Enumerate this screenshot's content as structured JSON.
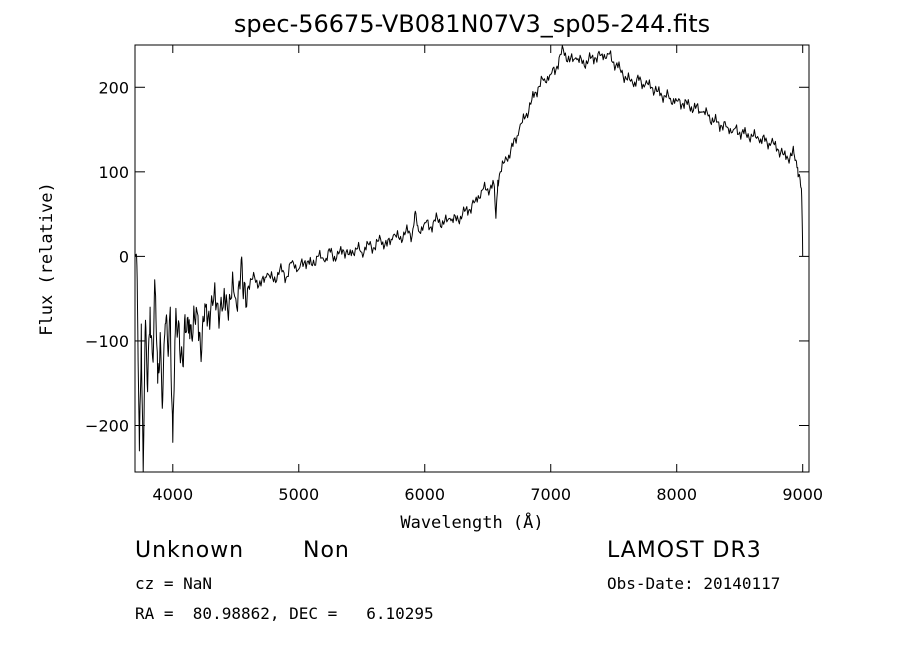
{
  "chart_data": {
    "type": "line",
    "title": "spec-56675-VB081N07V3_sp05-244.fits",
    "xlabel": "Wavelength (Å)",
    "ylabel": "Flux (relative)",
    "xlim": [
      3700,
      9050
    ],
    "ylim": [
      -255,
      250
    ],
    "x_ticks": [
      4000,
      5000,
      6000,
      7000,
      8000,
      9000
    ],
    "y_ticks": [
      -200,
      -100,
      0,
      100,
      200
    ],
    "grid": false,
    "series": [
      {
        "name": "flux",
        "points": [
          [
            3705,
            0
          ],
          [
            3720,
            -60
          ],
          [
            3735,
            -230
          ],
          [
            3750,
            -80
          ],
          [
            3765,
            -255
          ],
          [
            3780,
            -90
          ],
          [
            3800,
            -160
          ],
          [
            3820,
            -60
          ],
          [
            3840,
            -120
          ],
          [
            3860,
            -40
          ],
          [
            3880,
            -150
          ],
          [
            3900,
            -90
          ],
          [
            3920,
            -170
          ],
          [
            3940,
            -80
          ],
          [
            3960,
            -110
          ],
          [
            3980,
            -60
          ],
          [
            4000,
            -220
          ],
          [
            4020,
            -90
          ],
          [
            4050,
            -80
          ],
          [
            4080,
            -130
          ],
          [
            4100,
            -90
          ],
          [
            4130,
            -75
          ],
          [
            4160,
            -90
          ],
          [
            4200,
            -70
          ],
          [
            4230,
            -110
          ],
          [
            4260,
            -60
          ],
          [
            4300,
            -65
          ],
          [
            4350,
            -55
          ],
          [
            4400,
            -60
          ],
          [
            4450,
            -45
          ],
          [
            4500,
            -50
          ],
          [
            4540,
            -15
          ],
          [
            4560,
            -50
          ],
          [
            4600,
            -35
          ],
          [
            4650,
            -25
          ],
          [
            4700,
            -35
          ],
          [
            4750,
            -20
          ],
          [
            4800,
            -30
          ],
          [
            4850,
            -15
          ],
          [
            4900,
            -25
          ],
          [
            4950,
            -5
          ],
          [
            5000,
            -15
          ],
          [
            5050,
            -5
          ],
          [
            5100,
            -10
          ],
          [
            5150,
            0
          ],
          [
            5200,
            -5
          ],
          [
            5250,
            5
          ],
          [
            5300,
            -2
          ],
          [
            5350,
            8
          ],
          [
            5400,
            2
          ],
          [
            5450,
            10
          ],
          [
            5500,
            5
          ],
          [
            5550,
            15
          ],
          [
            5600,
            10
          ],
          [
            5650,
            20
          ],
          [
            5700,
            12
          ],
          [
            5750,
            25
          ],
          [
            5800,
            20
          ],
          [
            5850,
            30
          ],
          [
            5900,
            25
          ],
          [
            5920,
            50
          ],
          [
            5950,
            30
          ],
          [
            6000,
            40
          ],
          [
            6050,
            35
          ],
          [
            6100,
            45
          ],
          [
            6150,
            38
          ],
          [
            6200,
            45
          ],
          [
            6250,
            42
          ],
          [
            6300,
            50
          ],
          [
            6350,
            55
          ],
          [
            6400,
            65
          ],
          [
            6450,
            78
          ],
          [
            6500,
            80
          ],
          [
            6550,
            85
          ],
          [
            6565,
            45
          ],
          [
            6580,
            90
          ],
          [
            6600,
            100
          ],
          [
            6650,
            115
          ],
          [
            6700,
            130
          ],
          [
            6750,
            150
          ],
          [
            6800,
            165
          ],
          [
            6850,
            185
          ],
          [
            6900,
            200
          ],
          [
            6950,
            210
          ],
          [
            7000,
            215
          ],
          [
            7050,
            225
          ],
          [
            7100,
            245
          ],
          [
            7150,
            230
          ],
          [
            7200,
            235
          ],
          [
            7250,
            228
          ],
          [
            7300,
            232
          ],
          [
            7350,
            235
          ],
          [
            7400,
            238
          ],
          [
            7450,
            240
          ],
          [
            7500,
            230
          ],
          [
            7550,
            222
          ],
          [
            7600,
            210
          ],
          [
            7650,
            205
          ],
          [
            7700,
            208
          ],
          [
            7750,
            203
          ],
          [
            7800,
            200
          ],
          [
            7850,
            195
          ],
          [
            7900,
            190
          ],
          [
            7950,
            187
          ],
          [
            8000,
            184
          ],
          [
            8050,
            181
          ],
          [
            8100,
            178
          ],
          [
            8150,
            175
          ],
          [
            8200,
            171
          ],
          [
            8250,
            166
          ],
          [
            8300,
            160
          ],
          [
            8350,
            155
          ],
          [
            8400,
            153
          ],
          [
            8450,
            150
          ],
          [
            8500,
            147
          ],
          [
            8550,
            145
          ],
          [
            8600,
            142
          ],
          [
            8650,
            139
          ],
          [
            8700,
            136
          ],
          [
            8750,
            134
          ],
          [
            8800,
            127
          ],
          [
            8850,
            120
          ],
          [
            8900,
            118
          ],
          [
            8930,
            122
          ],
          [
            8960,
            105
          ],
          [
            8980,
            90
          ],
          [
            8990,
            80
          ],
          [
            9000,
            0
          ]
        ]
      }
    ]
  },
  "info": {
    "class": "Unknown",
    "subclass": "Non",
    "survey": "LAMOST DR3",
    "cz": "cz = NaN",
    "obs_date": "Obs-Date: 20140117",
    "radec": "RA =  80.98862, DEC =   6.10295"
  }
}
